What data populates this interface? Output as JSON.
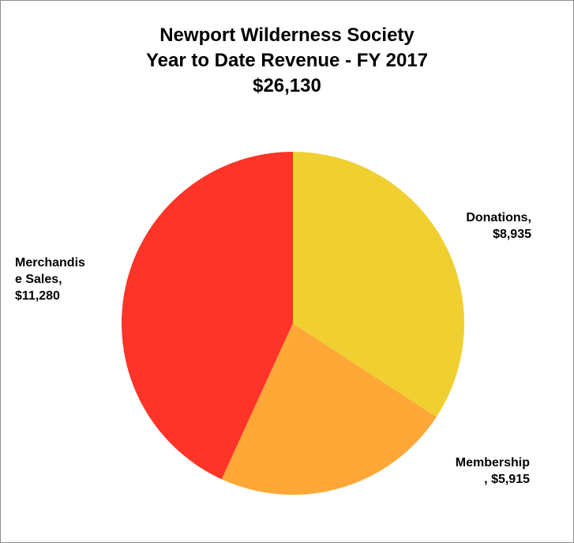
{
  "chart_data": {
    "type": "pie",
    "title_lines": [
      "Newport Wilderness Society",
      "Year to Date Revenue - FY 2017",
      "$26,130"
    ],
    "slices": [
      {
        "name": "Donations",
        "value": 8935,
        "color": "#EFD030",
        "label_lines": [
          "Donations,",
          "$8,935"
        ]
      },
      {
        "name": "Membership",
        "value": 5915,
        "color": "#FFA838",
        "label_lines": [
          "Membership",
          ",  $5,915"
        ]
      },
      {
        "name": "Merchandise Sales",
        "value": 11280,
        "color": "#FF3428",
        "label_lines": [
          "Merchandis",
          "e Sales,",
          "$11,280"
        ]
      }
    ],
    "legend": "none"
  }
}
